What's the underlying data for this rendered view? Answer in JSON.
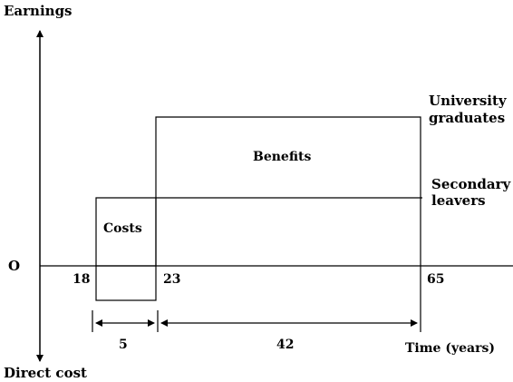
{
  "axis_labels": {
    "earnings": "Earnings",
    "direct_cost": "Direct cost",
    "origin": "O",
    "time": "Time (years)"
  },
  "ages": {
    "start": "18",
    "graduation": "23",
    "retirement": "65"
  },
  "regions": {
    "costs": "Costs",
    "benefits": "Benefits"
  },
  "line_labels": {
    "university_line1": "University",
    "university_line2": "graduates",
    "secondary_line1": "Secondary",
    "secondary_line2": "leavers"
  },
  "durations": {
    "study": "5",
    "working": "42"
  }
}
